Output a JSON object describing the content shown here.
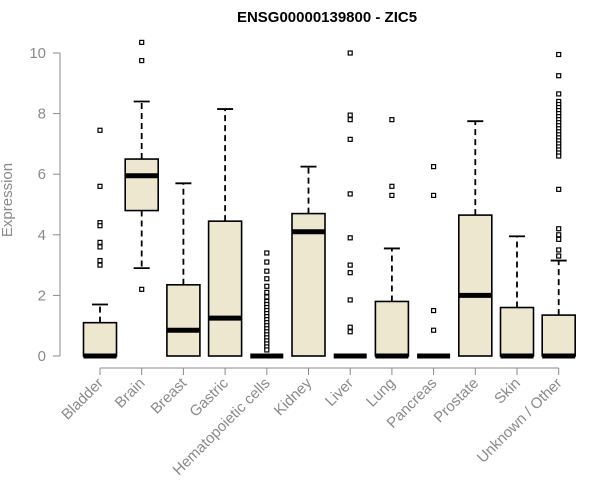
{
  "chart_data": {
    "type": "boxplot",
    "title": "ENSG00000139800 - ZIC5",
    "xlabel": "",
    "ylabel": "Expression",
    "ylim": [
      0,
      10
    ],
    "yticks": [
      0,
      2,
      4,
      6,
      8,
      10
    ],
    "grid": false,
    "box_color": "#ede7d0",
    "categories": [
      "Bladder",
      "Brain",
      "Breast",
      "Gastric",
      "Hematopoietic cells",
      "Kidney",
      "Liver",
      "Lung",
      "Pancreas",
      "Prostate",
      "Skin",
      "Unknown / Other"
    ],
    "boxes": [
      {
        "name": "Bladder",
        "q1": 0,
        "median": 0,
        "q3": 1.1,
        "whisker_low": 0,
        "whisker_high": 1.7,
        "outliers": [
          7.45,
          5.6,
          4.4,
          4.3,
          3.75,
          3.6,
          3.15,
          3.0
        ]
      },
      {
        "name": "Brain",
        "q1": 4.8,
        "median": 5.95,
        "q3": 6.5,
        "whisker_low": 2.9,
        "whisker_high": 8.4,
        "outliers": [
          10.35,
          9.75,
          2.2
        ]
      },
      {
        "name": "Breast",
        "q1": 0,
        "median": 0.85,
        "q3": 2.35,
        "whisker_low": 0,
        "whisker_high": 5.7,
        "outliers": []
      },
      {
        "name": "Gastric",
        "q1": 0,
        "median": 1.25,
        "q3": 4.45,
        "whisker_low": 0,
        "whisker_high": 8.15,
        "outliers": []
      },
      {
        "name": "Hematopoietic cells",
        "q1": 0,
        "median": 0,
        "q3": 0,
        "whisker_low": 0,
        "whisker_high": 0,
        "outliers": [
          3.4,
          3.1,
          2.8,
          2.55,
          2.3,
          2.1,
          1.95,
          1.8,
          1.7,
          1.6,
          1.5,
          1.4,
          1.3,
          1.2,
          1.1,
          1.0,
          0.9,
          0.8,
          0.7,
          0.6,
          0.5,
          0.4,
          0.3,
          0.2
        ]
      },
      {
        "name": "Kidney",
        "q1": 0,
        "median": 4.1,
        "q3": 4.7,
        "whisker_low": 0,
        "whisker_high": 6.25,
        "outliers": []
      },
      {
        "name": "Liver",
        "q1": 0,
        "median": 0,
        "q3": 0,
        "whisker_low": 0,
        "whisker_high": 0,
        "outliers": [
          10.0,
          7.95,
          7.8,
          7.15,
          5.35,
          3.9,
          3.0,
          2.75,
          1.85,
          0.95,
          0.8
        ]
      },
      {
        "name": "Lung",
        "q1": 0,
        "median": 0,
        "q3": 1.8,
        "whisker_low": 0,
        "whisker_high": 3.55,
        "outliers": [
          7.8,
          5.6,
          5.3
        ]
      },
      {
        "name": "Pancreas",
        "q1": 0,
        "median": 0,
        "q3": 0,
        "whisker_low": 0,
        "whisker_high": 0,
        "outliers": [
          6.25,
          5.3,
          1.5,
          0.85
        ]
      },
      {
        "name": "Prostate",
        "q1": 0,
        "median": 2.0,
        "q3": 4.65,
        "whisker_low": 0,
        "whisker_high": 7.75,
        "outliers": []
      },
      {
        "name": "Skin",
        "q1": 0,
        "median": 0,
        "q3": 1.6,
        "whisker_low": 0,
        "whisker_high": 3.95,
        "outliers": []
      },
      {
        "name": "Unknown / Other",
        "q1": 0,
        "median": 0,
        "q3": 1.35,
        "whisker_low": 0,
        "whisker_high": 3.15,
        "outliers": [
          9.95,
          9.25,
          8.65,
          8.4,
          8.3,
          8.2,
          8.1,
          8.0,
          7.9,
          7.8,
          7.7,
          7.6,
          7.5,
          7.4,
          7.3,
          7.2,
          7.1,
          7.0,
          6.9,
          6.8,
          6.7,
          6.6,
          5.5,
          4.2,
          4.0,
          3.85,
          3.5,
          3.3
        ]
      }
    ]
  }
}
